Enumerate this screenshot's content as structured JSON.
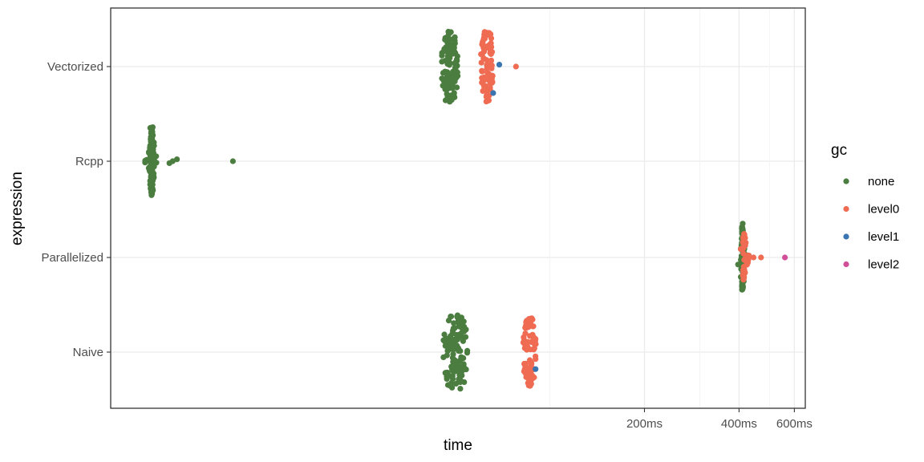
{
  "chart_data": {
    "type": "scatter",
    "title": "",
    "xlabel": "time",
    "ylabel": "expression",
    "x_scale": "log",
    "x_unit": "ms",
    "xlim": [
      4,
      650
    ],
    "x_ticks": [
      {
        "value": 200,
        "label": "200ms"
      },
      {
        "value": 400,
        "label": "400ms"
      },
      {
        "value": 600,
        "label": "600ms"
      }
    ],
    "categories": [
      "Vectorized",
      "Rcpp",
      "Parallelized",
      "Naive"
    ],
    "grid": true,
    "legend": {
      "title": "gc",
      "position": "right",
      "entries": [
        {
          "key": "none",
          "label": "none",
          "color": "#4a7d3f"
        },
        {
          "key": "level0",
          "label": "level0",
          "color": "#ef6b52"
        },
        {
          "key": "level1",
          "label": "level1",
          "color": "#3a75b0"
        },
        {
          "key": "level2",
          "label": "level2",
          "color": "#d04f98"
        }
      ]
    },
    "groups": [
      {
        "category": "Vectorized",
        "gc": "none",
        "center": 48,
        "spread": 0.06,
        "count": 110,
        "height": 0.75
      },
      {
        "category": "Vectorized",
        "gc": "level0",
        "center": 63,
        "spread": 0.045,
        "count": 85,
        "height": 0.75
      },
      {
        "category": "Vectorized",
        "gc": "level1",
        "points": [
          [
            69,
            0.02
          ],
          [
            66,
            -0.28
          ]
        ]
      },
      {
        "category": "Vectorized",
        "gc": "level0",
        "points": [
          [
            78,
            0.0
          ]
        ]
      },
      {
        "category": "Rcpp",
        "gc": "none",
        "center": 5.4,
        "spread": 0.025,
        "count": 160,
        "height": 0.72,
        "shape": "diamond"
      },
      {
        "category": "Rcpp",
        "gc": "none",
        "points": [
          [
            6.3,
            0.0
          ],
          [
            6.5,
            0.02
          ],
          [
            6.15,
            -0.02
          ],
          [
            9.8,
            0.0
          ]
        ]
      },
      {
        "category": "Parallelized",
        "gc": "none",
        "center": 410,
        "spread": 0.02,
        "count": 90,
        "height": 0.72,
        "shape": "diamond"
      },
      {
        "category": "Parallelized",
        "gc": "level0",
        "center": 415,
        "spread": 0.025,
        "count": 35,
        "height": 0.5,
        "shape": "diamond"
      },
      {
        "category": "Parallelized",
        "gc": "level0",
        "points": [
          [
            445,
            0.0
          ],
          [
            470,
            0.0
          ],
          [
            430,
            0.02
          ]
        ]
      },
      {
        "category": "Parallelized",
        "gc": "level2",
        "points": [
          [
            560,
            0.0
          ]
        ]
      },
      {
        "category": "Naive",
        "gc": "none",
        "center": 50,
        "spread": 0.09,
        "count": 120,
        "height": 0.78
      },
      {
        "category": "Naive",
        "gc": "level0",
        "center": 86,
        "spread": 0.05,
        "count": 75,
        "height": 0.72
      },
      {
        "category": "Naive",
        "gc": "level1",
        "points": [
          [
            90,
            -0.18
          ]
        ]
      }
    ]
  }
}
